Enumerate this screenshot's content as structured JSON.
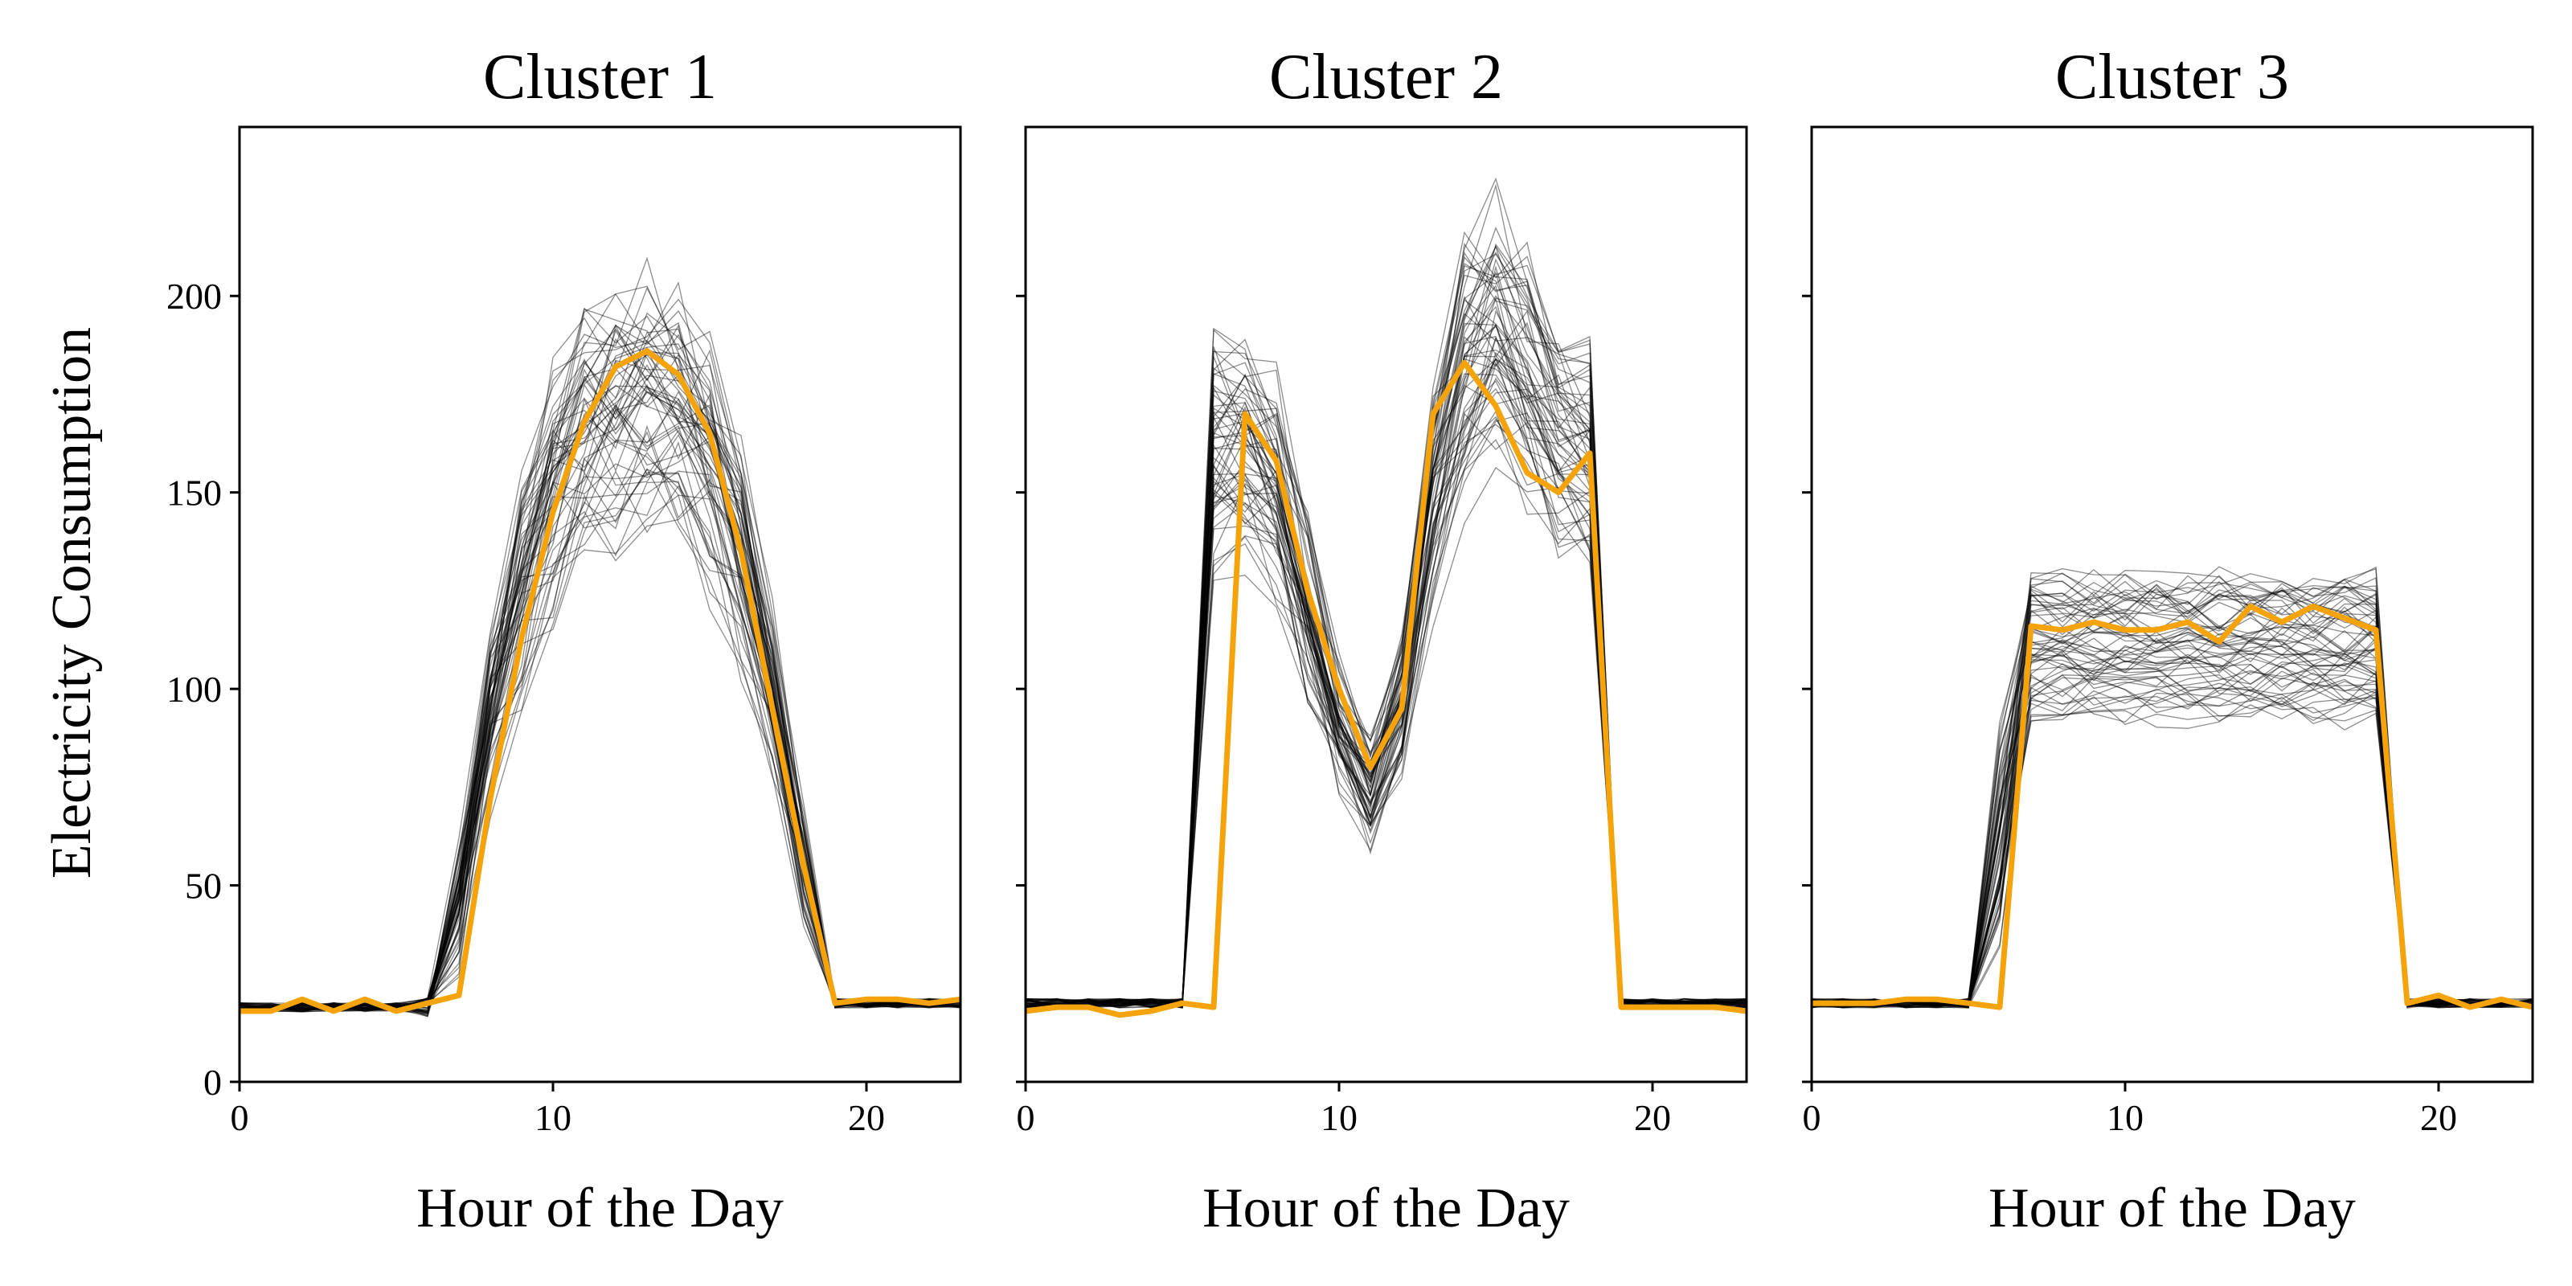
{
  "colors": {
    "centroid": "#f5a30a",
    "members": "#000000"
  },
  "chart_data": [
    {
      "type": "line",
      "title": "Cluster 1",
      "xlabel": "Hour of the Day",
      "ylabel": "Electricity Consumption",
      "xlim": [
        0,
        23
      ],
      "ylim": [
        0,
        243
      ],
      "xticks": [
        0,
        10,
        20
      ],
      "yticks": [
        0,
        50,
        100,
        150,
        200
      ],
      "grid": false,
      "x": [
        0,
        1,
        2,
        3,
        4,
        5,
        6,
        7,
        8,
        9,
        10,
        11,
        12,
        13,
        14,
        15,
        16,
        17,
        18,
        19,
        20,
        21,
        22,
        23
      ],
      "series": [
        {
          "role": "centroid",
          "values": [
            18,
            18,
            21,
            18,
            21,
            18,
            20,
            22,
            72,
            113,
            145,
            168,
            182,
            186,
            180,
            165,
            135,
            95,
            55,
            20,
            21,
            21,
            20,
            21
          ]
        }
      ],
      "members": {
        "count": 60,
        "description_base": [
          19,
          19,
          19,
          19,
          19,
          19,
          19,
          45,
          95,
          125,
          150,
          163,
          170,
          172,
          168,
          158,
          133,
          98,
          55,
          20,
          20,
          20,
          20,
          20
        ],
        "spread": [
          2,
          2,
          2,
          2,
          2,
          2,
          4,
          20,
          25,
          25,
          25,
          25,
          25,
          25,
          25,
          25,
          22,
          20,
          15,
          2,
          2,
          2,
          2,
          2
        ]
      }
    },
    {
      "type": "line",
      "title": "Cluster 2",
      "xlabel": "Hour of the Day",
      "ylabel": "",
      "xlim": [
        0,
        23
      ],
      "ylim": [
        0,
        243
      ],
      "xticks": [
        0,
        10,
        20
      ],
      "yticks": [
        0,
        50,
        100,
        150,
        200
      ],
      "grid": false,
      "x": [
        0,
        1,
        2,
        3,
        4,
        5,
        6,
        7,
        8,
        9,
        10,
        11,
        12,
        13,
        14,
        15,
        16,
        17,
        18,
        19,
        20,
        21,
        22,
        23
      ],
      "series": [
        {
          "role": "centroid",
          "values": [
            18,
            19,
            19,
            17,
            18,
            20,
            19,
            170,
            158,
            125,
            100,
            80,
            95,
            170,
            183,
            172,
            155,
            150,
            160,
            19,
            19,
            19,
            19,
            18
          ]
        }
      ],
      "members": {
        "count": 60,
        "description_base": [
          20,
          20,
          20,
          20,
          20,
          20,
          160,
          160,
          150,
          120,
          90,
          73,
          95,
          150,
          180,
          190,
          178,
          165,
          160,
          20,
          20,
          20,
          20,
          20
        ],
        "spread": [
          2,
          2,
          2,
          2,
          2,
          2,
          20,
          22,
          20,
          18,
          12,
          10,
          15,
          20,
          22,
          25,
          22,
          20,
          20,
          2,
          2,
          2,
          2,
          2
        ]
      }
    },
    {
      "type": "line",
      "title": "Cluster 3",
      "xlabel": "Hour of the Day",
      "ylabel": "",
      "xlim": [
        0,
        23
      ],
      "ylim": [
        0,
        243
      ],
      "xticks": [
        0,
        10,
        20
      ],
      "yticks": [
        0,
        50,
        100,
        150,
        200
      ],
      "grid": false,
      "x": [
        0,
        1,
        2,
        3,
        4,
        5,
        6,
        7,
        8,
        9,
        10,
        11,
        12,
        13,
        14,
        15,
        16,
        17,
        18,
        19,
        20,
        21,
        22,
        23
      ],
      "series": [
        {
          "role": "centroid",
          "values": [
            20,
            20,
            20,
            21,
            21,
            20,
            19,
            116,
            115,
            117,
            115,
            115,
            117,
            112,
            121,
            117,
            121,
            118,
            115,
            20,
            22,
            19,
            21,
            19
          ]
        }
      ],
      "members": {
        "count": 60,
        "description_base": [
          20,
          20,
          20,
          20,
          20,
          20,
          60,
          110,
          110,
          110,
          110,
          110,
          110,
          110,
          110,
          110,
          110,
          110,
          110,
          20,
          20,
          20,
          20,
          20
        ],
        "spread": [
          2,
          2,
          2,
          2,
          2,
          2,
          45,
          8,
          8,
          8,
          8,
          8,
          8,
          8,
          8,
          8,
          8,
          8,
          8,
          2,
          2,
          2,
          2,
          2
        ]
      }
    }
  ]
}
